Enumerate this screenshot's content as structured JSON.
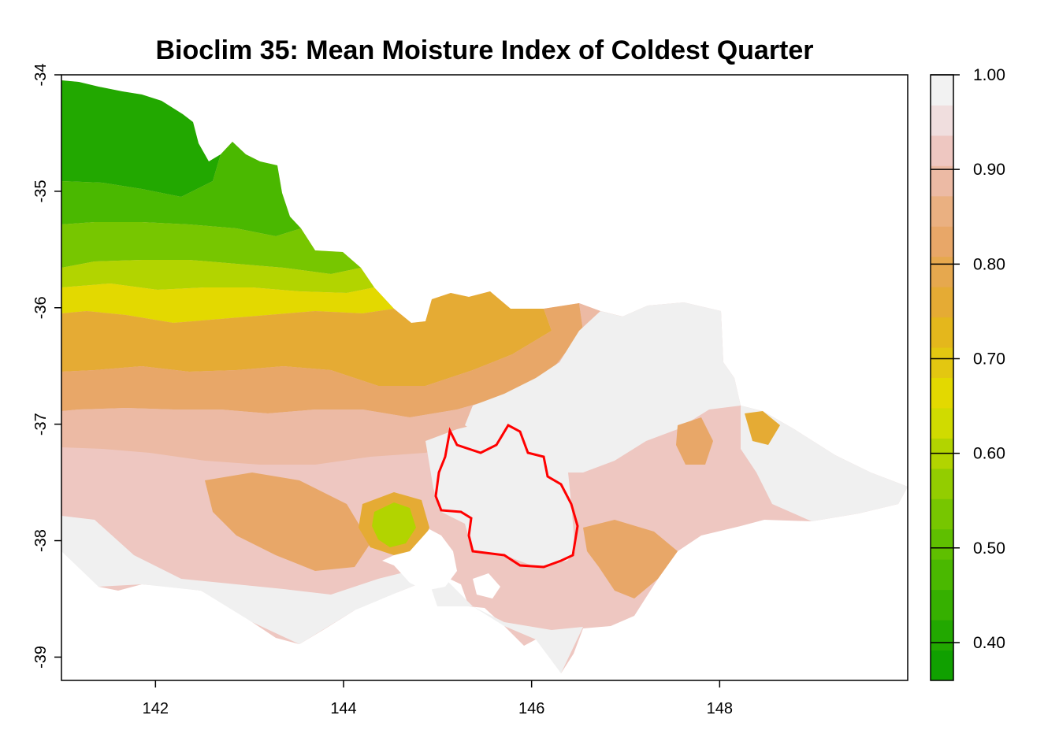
{
  "title": "Bioclim 35: Mean Moisture Index of Coldest Quarter",
  "map": {
    "x_ticks": [
      {
        "value": 142,
        "label": "142"
      },
      {
        "value": 144,
        "label": "144"
      },
      {
        "value": 146,
        "label": "146"
      },
      {
        "value": 148,
        "label": "148"
      }
    ],
    "y_ticks": [
      {
        "value": -34,
        "label": "-34"
      },
      {
        "value": -35,
        "label": "-35"
      },
      {
        "value": -36,
        "label": "-36"
      },
      {
        "value": -37,
        "label": "-37"
      },
      {
        "value": -38,
        "label": "-38"
      },
      {
        "value": -39,
        "label": "-39"
      }
    ],
    "x_range": [
      141.0,
      150.0
    ],
    "y_range": [
      -39.2,
      -34.0
    ]
  },
  "legend": {
    "range": [
      0.36,
      1.0
    ],
    "ticks": [
      {
        "value": 1.0,
        "label": "1.00"
      },
      {
        "value": 0.9,
        "label": "0.90"
      },
      {
        "value": 0.8,
        "label": "0.80"
      },
      {
        "value": 0.7,
        "label": "0.70"
      },
      {
        "value": 0.6,
        "label": "0.60"
      },
      {
        "value": 0.5,
        "label": "0.50"
      },
      {
        "value": 0.4,
        "label": "0.40"
      }
    ],
    "colors": [
      "#10a000",
      "#22a800",
      "#36b000",
      "#4ab800",
      "#5fbf00",
      "#77c600",
      "#93cd00",
      "#b2d400",
      "#d0db00",
      "#e3d900",
      "#e3c711",
      "#e4b71c",
      "#e5ab34",
      "#e6a84e",
      "#e8a768",
      "#eab081",
      "#ecbaa4",
      "#eec7c1",
      "#f0dede",
      "#f2f2f2"
    ]
  },
  "highlight_color": "#ff0000"
}
